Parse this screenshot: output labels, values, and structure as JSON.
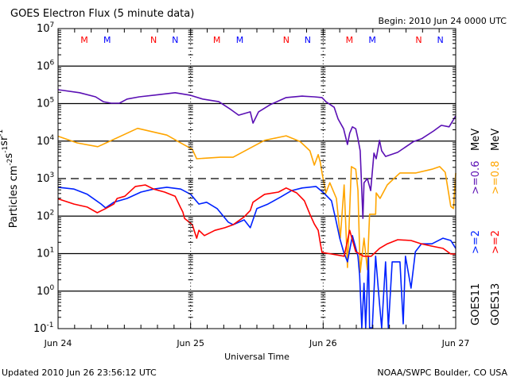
{
  "chart_data": {
    "type": "line",
    "title": "GOES Electron Flux (5 minute data)",
    "subtitle": "Begin: 2010 Jun 24 0000 UTC",
    "xlabel": "Universal Time",
    "ylabel": [
      {
        "text": "Particles cm",
        "sup": false
      },
      {
        "text": "-2",
        "sup": true
      },
      {
        "text": "s",
        "sup": false
      },
      {
        "text": "-1",
        "sup": true
      },
      {
        "text": "sr",
        "sup": false
      },
      {
        "text": "-1",
        "sup": true
      }
    ],
    "x_unit": "hours since 2010 Jun 24 00:00 UTC",
    "xlim": [
      0,
      72
    ],
    "x_ticks": [
      {
        "hour": 0,
        "label": "Jun 24"
      },
      {
        "hour": 24,
        "label": "Jun 25"
      },
      {
        "hour": 48,
        "label": "Jun 26"
      },
      {
        "hour": 72,
        "label": "Jun 27"
      }
    ],
    "y_scale": "log",
    "ylim_log10": [
      -1,
      7
    ],
    "y_ticks": [
      {
        "base": "10",
        "exp": "7",
        "log10": 7
      },
      {
        "base": "10",
        "exp": "6",
        "log10": 6
      },
      {
        "base": "10",
        "exp": "5",
        "log10": 5
      },
      {
        "base": "10",
        "exp": "4",
        "log10": 4
      },
      {
        "base": "10",
        "exp": "3",
        "log10": 3
      },
      {
        "base": "10",
        "exp": "2",
        "log10": 2
      },
      {
        "base": "10",
        "exp": "1",
        "log10": 1
      },
      {
        "base": "10",
        "exp": "0",
        "log10": 0
      },
      {
        "base": "10",
        "exp": "-1",
        "log10": -1
      }
    ],
    "threshold_log10": 3,
    "markers": [
      {
        "label": "M",
        "hour": 4.75,
        "color": "#ff0000"
      },
      {
        "label": "M",
        "hour": 8.9,
        "color": "#0000ff"
      },
      {
        "label": "N",
        "hour": 17.3,
        "color": "#ff0000"
      },
      {
        "label": "N",
        "hour": 21.2,
        "color": "#0000ff"
      }
    ],
    "legend": [
      {
        "satellite": "GOES11",
        "entries": [
          {
            "label": ">=2",
            "color": "#0022ff"
          },
          {
            "label": ">=0.6",
            "color": "#5a0fb4"
          },
          {
            "label": "MeV",
            "color": "#000000"
          }
        ]
      },
      {
        "satellite": "GOES13",
        "entries": [
          {
            "label": ">=2",
            "color": "#ff0000"
          },
          {
            "label": ">=0.8",
            "color": "#ffa500"
          },
          {
            "label": "MeV",
            "color": "#000000"
          }
        ]
      }
    ],
    "series": [
      {
        "name": "GOES11 >=0.6 MeV",
        "color": "#5a0fb4",
        "points_hour_log10flux": [
          [
            0,
            5.37
          ],
          [
            3.9,
            5.29
          ],
          [
            6.8,
            5.18
          ],
          [
            8.2,
            5.05
          ],
          [
            9.6,
            5.01
          ],
          [
            11.1,
            5.01
          ],
          [
            12.5,
            5.12
          ],
          [
            14.7,
            5.18
          ],
          [
            18.3,
            5.24
          ],
          [
            21.2,
            5.29
          ],
          [
            24,
            5.22
          ],
          [
            26.2,
            5.12
          ],
          [
            29.1,
            5.05
          ],
          [
            31.3,
            4.84
          ],
          [
            32.7,
            4.69
          ],
          [
            34.8,
            4.78
          ],
          [
            35.3,
            4.48
          ],
          [
            36.3,
            4.78
          ],
          [
            38.4,
            4.97
          ],
          [
            41.3,
            5.16
          ],
          [
            44.2,
            5.2
          ],
          [
            46.4,
            5.18
          ],
          [
            47.8,
            5.16
          ],
          [
            48.5,
            5.05
          ],
          [
            50,
            4.9
          ],
          [
            50.7,
            4.59
          ],
          [
            51.7,
            4.33
          ],
          [
            52.4,
            3.91
          ],
          [
            52.8,
            4.21
          ],
          [
            53.3,
            4.38
          ],
          [
            53.9,
            4.33
          ],
          [
            54.3,
            4.06
          ],
          [
            54.7,
            3.74
          ],
          [
            55.2,
            1.94
          ],
          [
            55.4,
            2.89
          ],
          [
            56,
            3.0
          ],
          [
            56.6,
            2.68
          ],
          [
            57.2,
            3.68
          ],
          [
            57.6,
            3.53
          ],
          [
            58.2,
            4.02
          ],
          [
            58.6,
            3.74
          ],
          [
            59.3,
            3.59
          ],
          [
            61.5,
            3.7
          ],
          [
            64.4,
            3.99
          ],
          [
            65.8,
            4.06
          ],
          [
            68,
            4.27
          ],
          [
            69.4,
            4.42
          ],
          [
            70.8,
            4.38
          ],
          [
            72,
            4.67
          ]
        ]
      },
      {
        "name": "GOES13 >=0.8 MeV",
        "color": "#ffa500",
        "points_hour_log10flux": [
          [
            0,
            4.13
          ],
          [
            3.5,
            3.95
          ],
          [
            7.2,
            3.85
          ],
          [
            14.4,
            4.34
          ],
          [
            19.7,
            4.16
          ],
          [
            22.2,
            3.95
          ],
          [
            24.3,
            3.78
          ],
          [
            25.1,
            3.53
          ],
          [
            29.4,
            3.57
          ],
          [
            31.7,
            3.57
          ],
          [
            34.6,
            3.8
          ],
          [
            37.4,
            4.02
          ],
          [
            41.3,
            4.14
          ],
          [
            43.8,
            3.99
          ],
          [
            45.6,
            3.74
          ],
          [
            46.4,
            3.36
          ],
          [
            47.1,
            3.64
          ],
          [
            47.5,
            3.42
          ],
          [
            47.8,
            3.15
          ],
          [
            48.5,
            2.62
          ],
          [
            49.2,
            2.89
          ],
          [
            50.4,
            2.47
          ],
          [
            51.1,
            1.41
          ],
          [
            51.8,
            2.83
          ],
          [
            52.4,
            0.63
          ],
          [
            53.1,
            3.32
          ],
          [
            53.9,
            3.25
          ],
          [
            54.3,
            2.68
          ],
          [
            54.7,
            0.5
          ],
          [
            55.4,
            1.41
          ],
          [
            56,
            0.57
          ],
          [
            56.4,
            2.05
          ],
          [
            57.5,
            2.05
          ],
          [
            57.6,
            2.62
          ],
          [
            58.3,
            2.47
          ],
          [
            59.6,
            2.83
          ],
          [
            61.1,
            3.04
          ],
          [
            61.9,
            3.15
          ],
          [
            64.8,
            3.15
          ],
          [
            67.7,
            3.25
          ],
          [
            69.1,
            3.32
          ],
          [
            70.1,
            3.17
          ],
          [
            71.1,
            2.26
          ],
          [
            71.6,
            2.2
          ],
          [
            72,
            3.15
          ]
        ]
      },
      {
        "name": "GOES11 >=2 MeV",
        "color": "#0022ff",
        "points_hour_log10flux": [
          [
            0,
            2.77
          ],
          [
            2.9,
            2.72
          ],
          [
            5.3,
            2.58
          ],
          [
            7.8,
            2.32
          ],
          [
            8.6,
            2.22
          ],
          [
            10.1,
            2.37
          ],
          [
            12.5,
            2.47
          ],
          [
            15,
            2.64
          ],
          [
            17.3,
            2.72
          ],
          [
            19.7,
            2.77
          ],
          [
            22.2,
            2.72
          ],
          [
            24,
            2.58
          ],
          [
            25.5,
            2.32
          ],
          [
            26.9,
            2.37
          ],
          [
            28.8,
            2.2
          ],
          [
            30.8,
            1.84
          ],
          [
            31.7,
            1.77
          ],
          [
            33.7,
            1.9
          ],
          [
            34.8,
            1.69
          ],
          [
            36,
            2.2
          ],
          [
            38,
            2.32
          ],
          [
            40.3,
            2.51
          ],
          [
            42.3,
            2.68
          ],
          [
            44.2,
            2.75
          ],
          [
            46.7,
            2.79
          ],
          [
            48.1,
            2.62
          ],
          [
            49.5,
            2.41
          ],
          [
            50.3,
            1.9
          ],
          [
            51,
            1.41
          ],
          [
            51.7,
            1.05
          ],
          [
            52.4,
            0.78
          ],
          [
            53.3,
            1.48
          ],
          [
            54.3,
            0.93
          ],
          [
            54.6,
            0.42
          ],
          [
            55,
            -0.98
          ],
          [
            55.4,
            0.21
          ],
          [
            55.7,
            -0.98
          ],
          [
            56.2,
            0.93
          ],
          [
            56.4,
            -0.98
          ],
          [
            56.9,
            -0.98
          ],
          [
            57.5,
            0.93
          ],
          [
            58.2,
            -0.34
          ],
          [
            58.6,
            -0.98
          ],
          [
            59.3,
            0.78
          ],
          [
            59.8,
            -0.98
          ],
          [
            60.5,
            0.78
          ],
          [
            61.9,
            0.78
          ],
          [
            62.5,
            -0.87
          ],
          [
            62.9,
            0.93
          ],
          [
            63.9,
            0.08
          ],
          [
            64.7,
            1.05
          ],
          [
            65.8,
            1.26
          ],
          [
            67.7,
            1.26
          ],
          [
            69.7,
            1.41
          ],
          [
            71.1,
            1.35
          ],
          [
            72,
            1.14
          ]
        ]
      },
      {
        "name": "GOES13 >=2 MeV",
        "color": "#ff0000",
        "points_hour_log10flux": [
          [
            0,
            2.46
          ],
          [
            2.9,
            2.32
          ],
          [
            5.3,
            2.24
          ],
          [
            7.1,
            2.09
          ],
          [
            8.6,
            2.2
          ],
          [
            10.1,
            2.32
          ],
          [
            10.7,
            2.47
          ],
          [
            12.1,
            2.53
          ],
          [
            14,
            2.79
          ],
          [
            15.8,
            2.83
          ],
          [
            17.3,
            2.72
          ],
          [
            19.3,
            2.64
          ],
          [
            21.2,
            2.53
          ],
          [
            22.2,
            2.22
          ],
          [
            22.6,
            2.11
          ],
          [
            22.9,
            1.94
          ],
          [
            24.3,
            1.77
          ],
          [
            25.1,
            1.41
          ],
          [
            25.5,
            1.62
          ],
          [
            26.5,
            1.48
          ],
          [
            28.4,
            1.62
          ],
          [
            30.2,
            1.69
          ],
          [
            31.7,
            1.77
          ],
          [
            33.7,
            1.98
          ],
          [
            34.8,
            2.15
          ],
          [
            35.3,
            2.37
          ],
          [
            37.4,
            2.58
          ],
          [
            39.9,
            2.64
          ],
          [
            41.3,
            2.75
          ],
          [
            43.2,
            2.62
          ],
          [
            44.6,
            2.41
          ],
          [
            45.6,
            2.05
          ],
          [
            46.4,
            1.79
          ],
          [
            47.1,
            1.62
          ],
          [
            47.5,
            1.26
          ],
          [
            47.8,
            1.03
          ],
          [
            49.5,
            0.99
          ],
          [
            51.8,
            0.93
          ],
          [
            52.8,
            1.62
          ],
          [
            53.9,
            1.05
          ],
          [
            55.3,
            0.93
          ],
          [
            56.7,
            0.93
          ],
          [
            58.2,
            1.14
          ],
          [
            59.6,
            1.26
          ],
          [
            61.5,
            1.37
          ],
          [
            63.9,
            1.35
          ],
          [
            65.8,
            1.26
          ],
          [
            67.7,
            1.2
          ],
          [
            69.7,
            1.14
          ],
          [
            71.1,
            0.99
          ],
          [
            72,
            0.99
          ]
        ]
      }
    ]
  },
  "footer": {
    "updated": "Updated 2010 Jun 26 23:56:12 UTC",
    "credit": "NOAA/SWPC Boulder, CO USA"
  }
}
